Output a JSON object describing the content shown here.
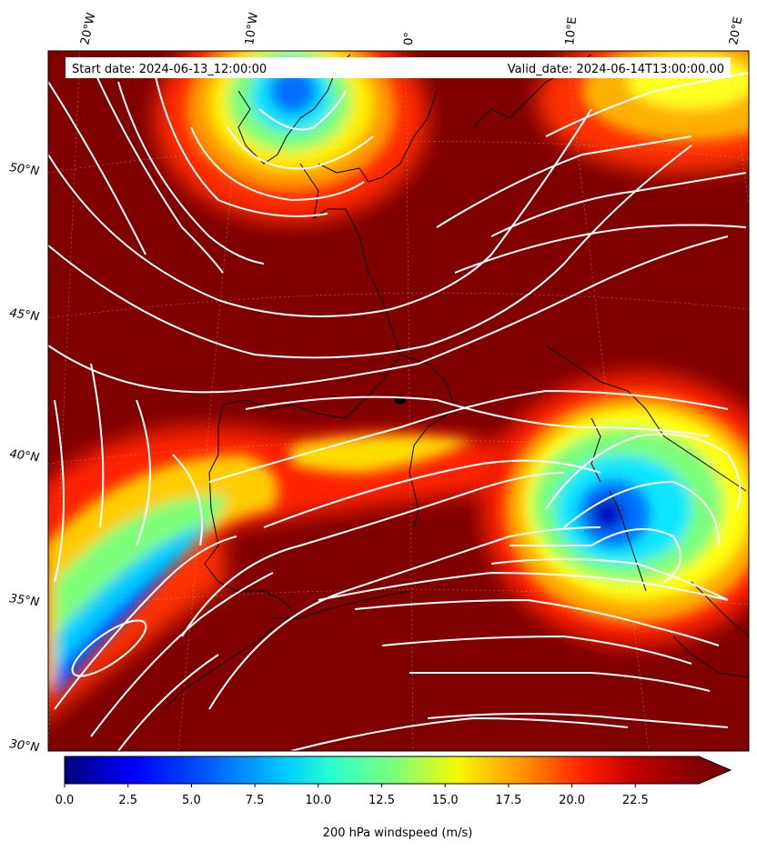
{
  "header": {
    "start_date": "Start date: 2024-06-13_12:00:00",
    "valid_date": "Valid_date: 2024-06-14T13:00:00.00"
  },
  "longitude_labels": [
    "20°W",
    "10°W",
    "0°",
    "10°E",
    "20°E"
  ],
  "latitude_labels": [
    "50°N",
    "45°N",
    "40°N",
    "35°N",
    "30°N"
  ],
  "colorbar": {
    "label": "200 hPa windspeed (m/s)",
    "ticks": [
      "0.0",
      "2.5",
      "5.0",
      "7.5",
      "10.0",
      "12.5",
      "15.0",
      "17.5",
      "20.0",
      "22.5"
    ],
    "min": 0,
    "max": 25,
    "extend": "max",
    "colormap": "jet",
    "levels": 50
  },
  "colors": {
    "high_speed": "#800000",
    "streamline": "#ffffff",
    "coastline": "#000000"
  }
}
